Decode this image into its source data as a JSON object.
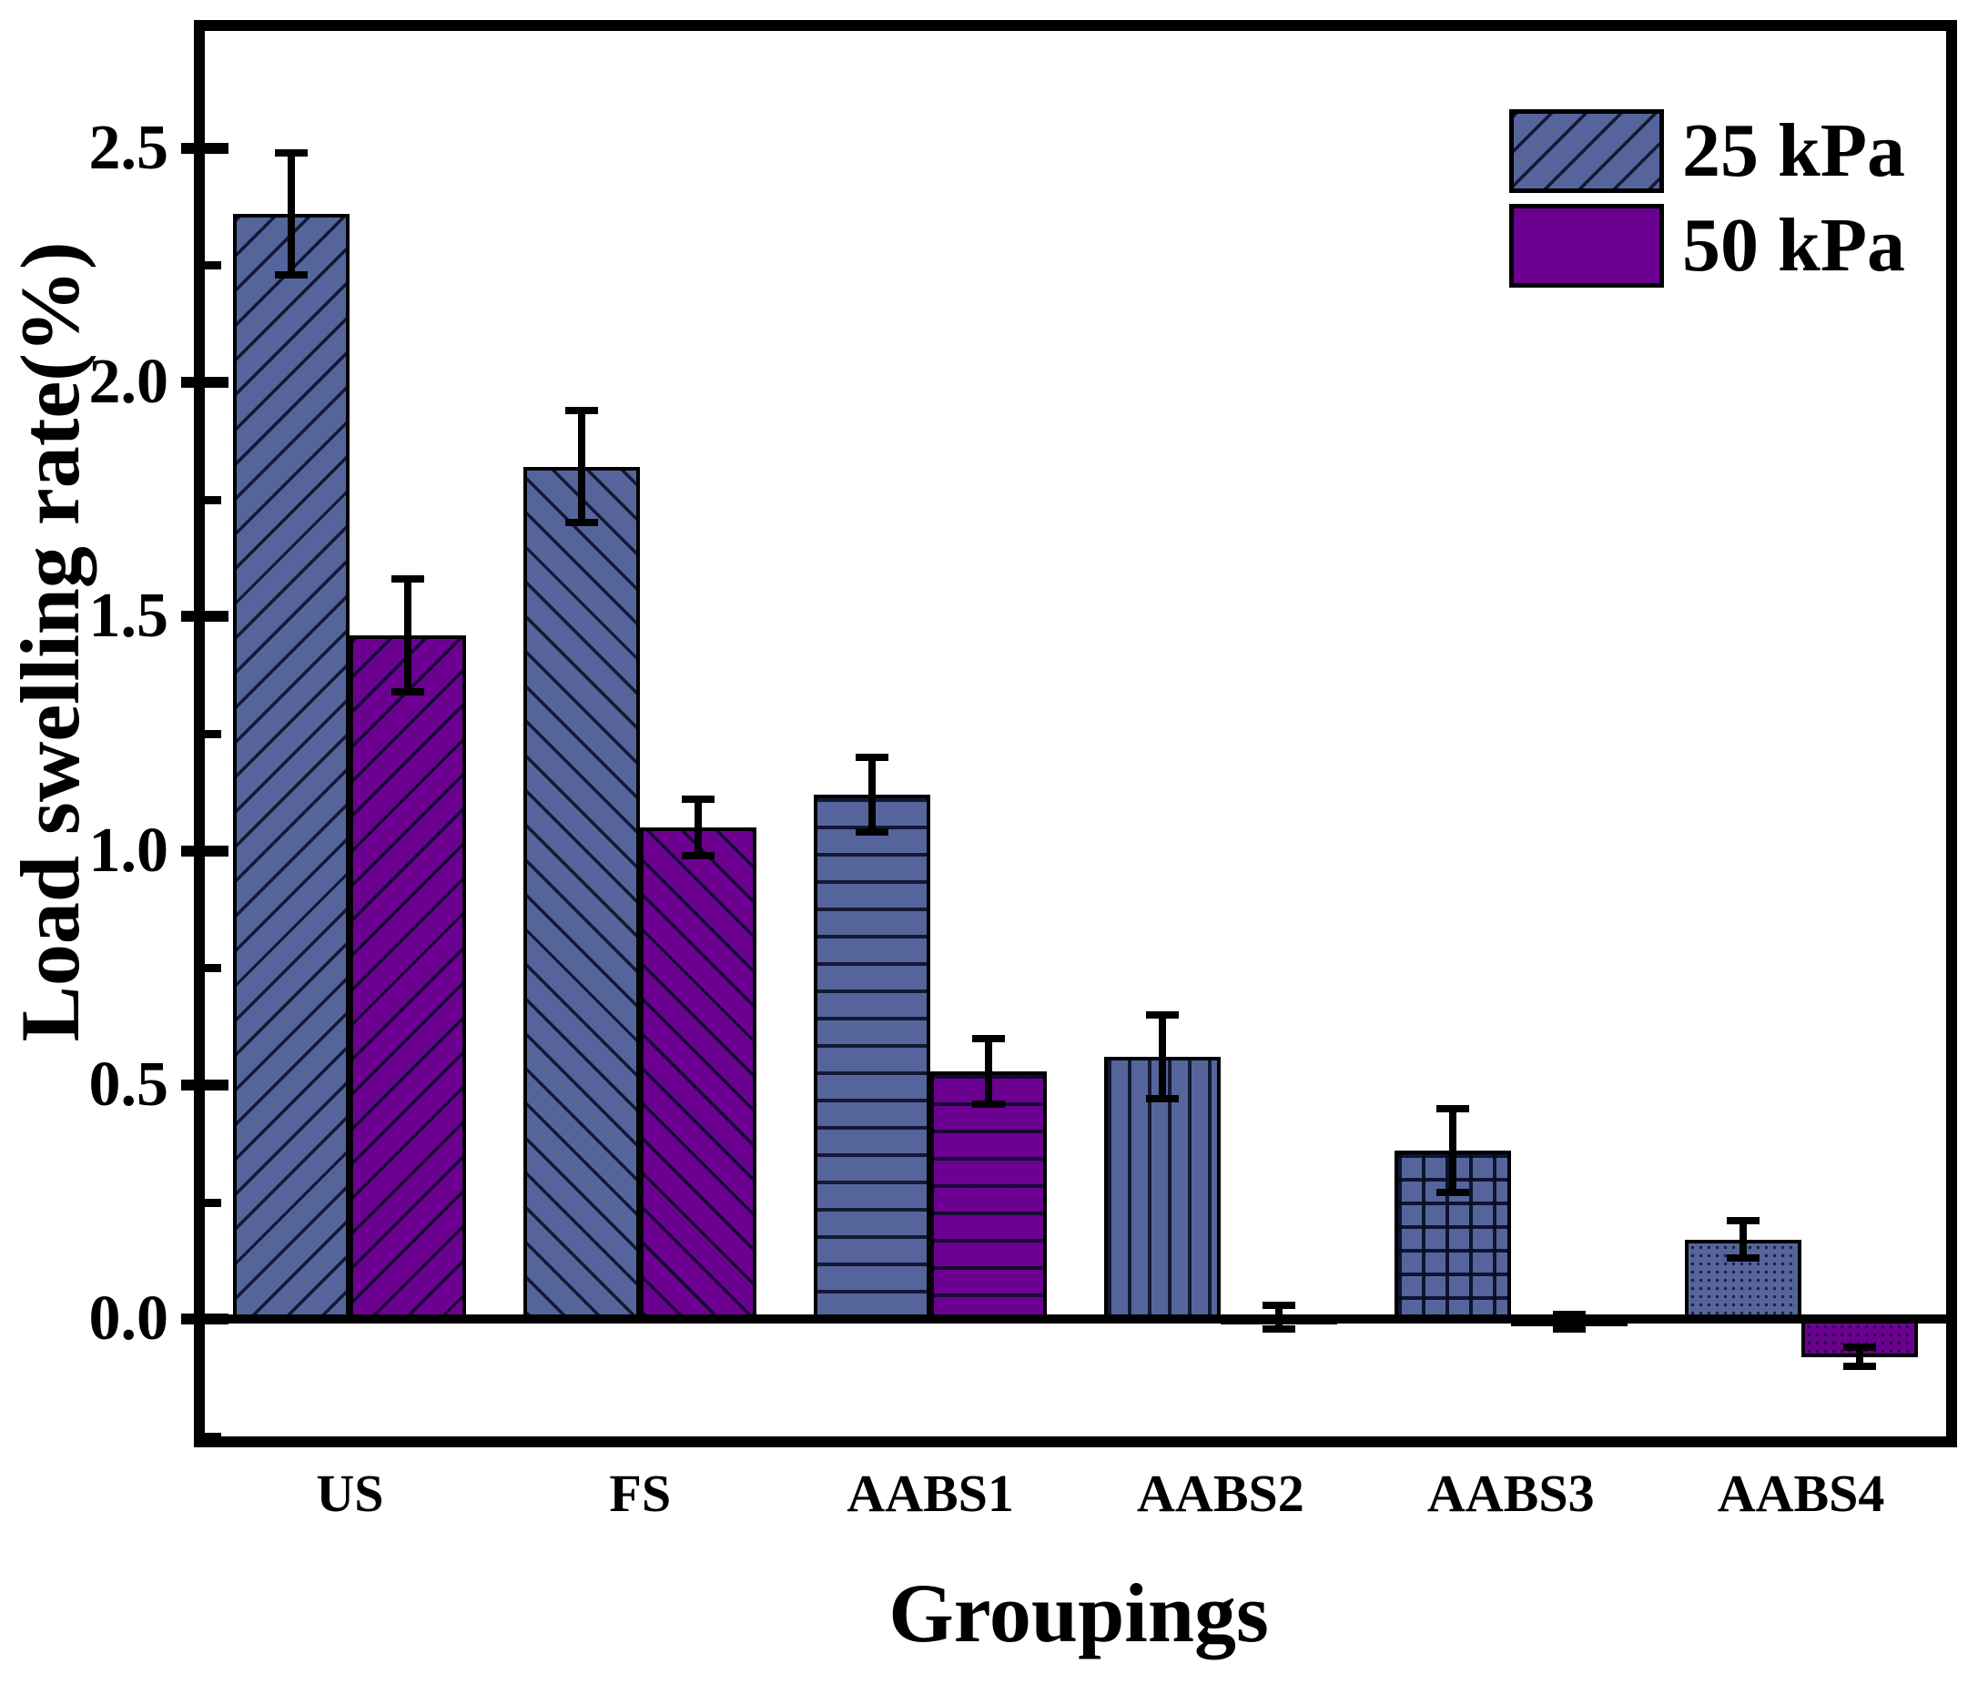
{
  "figure": {
    "y_axis_title": "Load swelling rate(%)",
    "x_axis_title": "Groupings"
  },
  "colors": {
    "series_25kPa": "#55659C",
    "series_50kPa": "#6C0191",
    "hatch_line": "#080A23",
    "axis": "#000000",
    "background": "#FFFFFF"
  },
  "chart_data": {
    "type": "bar",
    "title": "",
    "xlabel": "Groupings",
    "ylabel": "Load swelling rate(%)",
    "categories": [
      "US",
      "FS",
      "AABS1",
      "AABS2",
      "AABS3",
      "AABS4"
    ],
    "series": [
      {
        "name": "25 kPa",
        "color": "#55659C",
        "hatch": [
          "fwd",
          "back",
          "horiz",
          "vert",
          "grid",
          "dots"
        ],
        "values": [
          2.36,
          1.82,
          1.12,
          0.56,
          0.36,
          0.17
        ],
        "errors": [
          0.13,
          0.12,
          0.08,
          0.09,
          0.09,
          0.04
        ]
      },
      {
        "name": "50 kPa",
        "color": "#6C0191",
        "hatch": [
          "fwd",
          "back",
          "horiz",
          "vert",
          "grid",
          "dots"
        ],
        "values": [
          1.46,
          1.05,
          0.53,
          0.005,
          -0.005,
          -0.08
        ],
        "errors": [
          0.12,
          0.06,
          0.07,
          0.025,
          0.015,
          0.02
        ]
      }
    ],
    "ylim": [
      -0.25,
      2.75
    ],
    "yticks_major": [
      {
        "value": 0.0,
        "label": "0.0"
      },
      {
        "value": 0.5,
        "label": "0.5"
      },
      {
        "value": 1.0,
        "label": "1.0"
      },
      {
        "value": 1.5,
        "label": "1.5"
      },
      {
        "value": 2.0,
        "label": "2.0"
      },
      {
        "value": 2.5,
        "label": "2.5"
      }
    ],
    "yticks_minor": [
      -0.25,
      0.25,
      0.75,
      1.25,
      1.75,
      2.25
    ],
    "legend_position": "top-right",
    "grid": false
  },
  "legend": {
    "items": [
      {
        "label": "25 kPa",
        "swatch": "blue-diagonal-hatch"
      },
      {
        "label": "50 kPa",
        "swatch": "purple-solid"
      }
    ]
  }
}
